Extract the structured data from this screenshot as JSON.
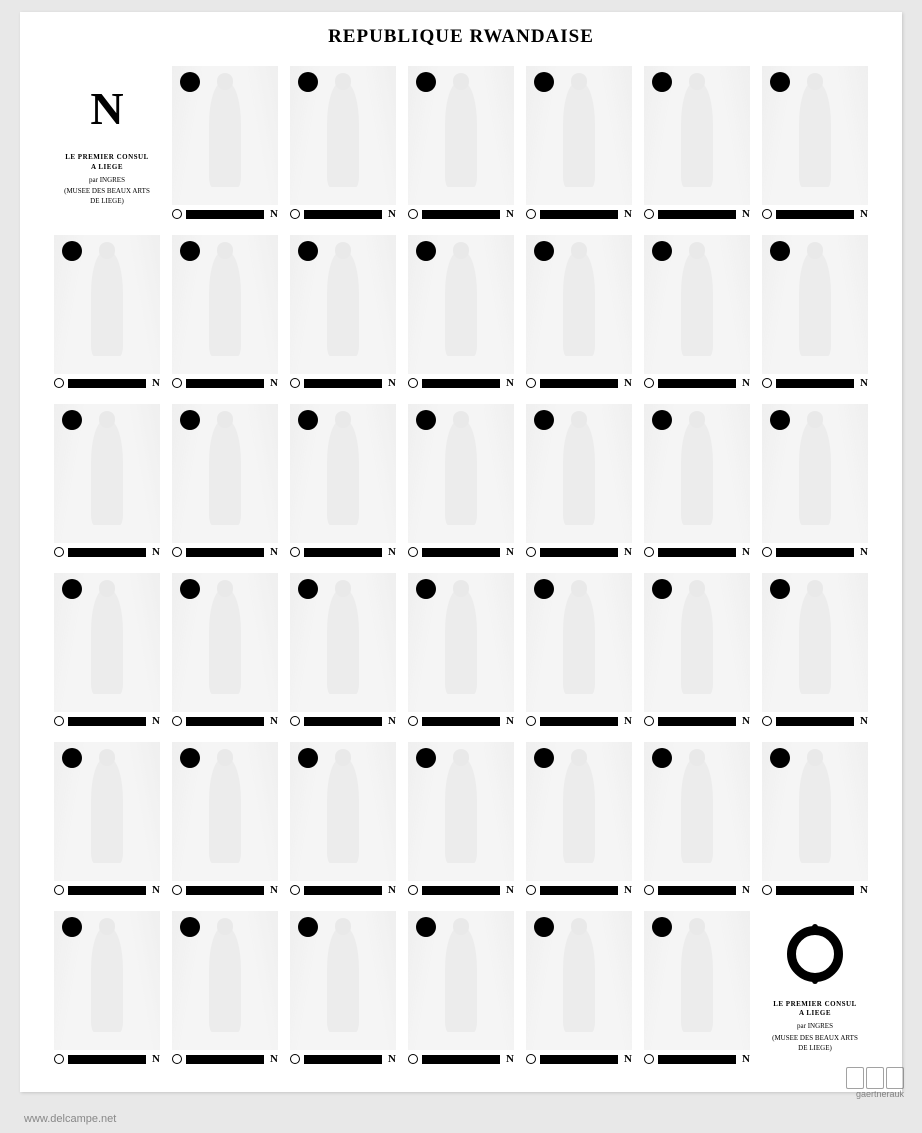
{
  "header": {
    "title": "REPUBLIQUE RWANDAISE"
  },
  "stamp": {
    "dot_color": "#000000",
    "bar_color": "#000000",
    "image_bg": "#f5f5f5",
    "footer_letter": "N"
  },
  "label": {
    "letter": "N",
    "title_line1": "LE PREMIER CONSUL",
    "title_line2": "A LIEGE",
    "artist_prefix": "par",
    "artist": "INGRES",
    "museum_line1": "(MUSEE DES BEAUX ARTS",
    "museum_line2": "DE LIEGE)"
  },
  "grid": {
    "rows": 6,
    "cols": 7,
    "label_top_position": {
      "row": 0,
      "col": 0
    },
    "label_bottom_position": {
      "row": 5,
      "col": 6
    }
  },
  "watermark": {
    "text": "www.delcampe.net"
  },
  "auction": {
    "name": "gaertnerauk"
  },
  "colors": {
    "page_bg": "#e8e8e8",
    "sheet_bg": "#ffffff",
    "text": "#000000"
  }
}
